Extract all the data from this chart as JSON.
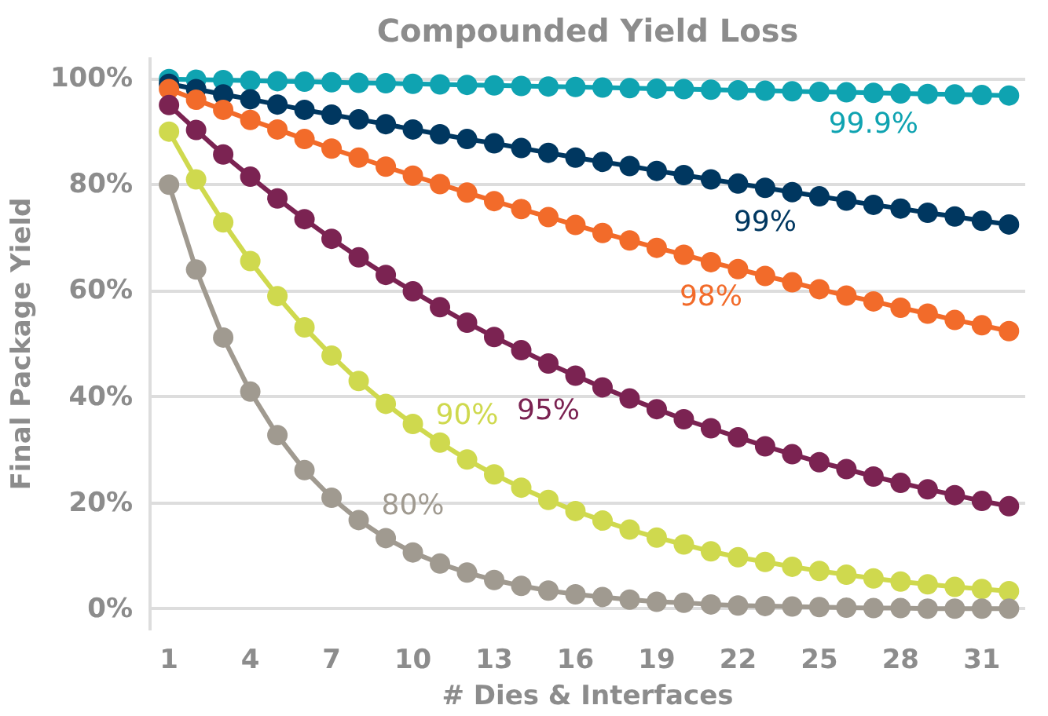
{
  "chart_data": {
    "type": "line",
    "title": "Compounded Yield Loss",
    "xlabel": "# Dies & Interfaces",
    "ylabel": "Final Package Yield",
    "x": [
      1,
      2,
      3,
      4,
      5,
      6,
      7,
      8,
      9,
      10,
      11,
      12,
      13,
      14,
      15,
      16,
      17,
      18,
      19,
      20,
      21,
      22,
      23,
      24,
      25,
      26,
      27,
      28,
      29,
      30,
      31,
      32
    ],
    "xlim": [
      0.3,
      32.6
    ],
    "xticks": [
      1,
      4,
      7,
      10,
      13,
      16,
      19,
      22,
      25,
      28,
      31
    ],
    "ylim": [
      -4,
      104
    ],
    "yticks": [
      {
        "value": 0,
        "label": "0%"
      },
      {
        "value": 20,
        "label": "20%"
      },
      {
        "value": 40,
        "label": "40%"
      },
      {
        "value": 60,
        "label": "60%"
      },
      {
        "value": 80,
        "label": "80%"
      },
      {
        "value": 100,
        "label": "100%"
      }
    ],
    "grid": "y",
    "marker": "circle",
    "line_style": "solid",
    "series": [
      {
        "name": "99.9%",
        "color": "#0fa3b1",
        "values": [
          99.9,
          99.8,
          99.7,
          99.6,
          99.5,
          99.4,
          99.3,
          99.2,
          99.1,
          99.0,
          98.9,
          98.8,
          98.7,
          98.6,
          98.5,
          98.4,
          98.3,
          98.2,
          98.1,
          98.0,
          97.9,
          97.8,
          97.7,
          97.6,
          97.5,
          97.4,
          97.3,
          97.2,
          97.1,
          97.0,
          96.9,
          96.8
        ]
      },
      {
        "name": "99%",
        "color": "#003760",
        "values": [
          99.0,
          98.0,
          97.0,
          96.1,
          95.1,
          94.1,
          93.2,
          92.3,
          91.4,
          90.4,
          89.5,
          88.6,
          87.8,
          86.9,
          86.0,
          85.1,
          84.3,
          83.5,
          82.6,
          81.8,
          81.0,
          80.2,
          79.4,
          78.6,
          77.8,
          77.0,
          76.2,
          75.5,
          74.7,
          74.0,
          73.2,
          72.5
        ]
      },
      {
        "name": "98%",
        "color": "#f26b2a",
        "values": [
          98.0,
          96.0,
          94.1,
          92.2,
          90.4,
          88.6,
          86.8,
          85.1,
          83.4,
          81.7,
          80.1,
          78.5,
          76.9,
          75.4,
          73.9,
          72.4,
          70.9,
          69.5,
          68.1,
          66.8,
          65.4,
          64.1,
          62.8,
          61.6,
          60.3,
          59.1,
          58.0,
          56.8,
          55.7,
          54.5,
          53.5,
          52.4
        ]
      },
      {
        "name": "95%",
        "color": "#7b2352",
        "values": [
          95.0,
          90.3,
          85.7,
          81.5,
          77.4,
          73.5,
          69.8,
          66.3,
          63.0,
          59.9,
          56.9,
          54.0,
          51.3,
          48.8,
          46.3,
          44.0,
          41.8,
          39.7,
          37.7,
          35.8,
          34.1,
          32.4,
          30.7,
          29.2,
          27.7,
          26.4,
          25.0,
          23.8,
          22.6,
          21.5,
          20.4,
          19.4
        ]
      },
      {
        "name": "90%",
        "color": "#cfd94e",
        "values": [
          90.0,
          81.0,
          72.9,
          65.6,
          59.0,
          53.1,
          47.8,
          43.0,
          38.7,
          34.9,
          31.4,
          28.2,
          25.4,
          22.9,
          20.6,
          18.5,
          16.7,
          15.0,
          13.5,
          12.2,
          10.9,
          9.8,
          8.9,
          8.0,
          7.2,
          6.5,
          5.8,
          5.2,
          4.7,
          4.2,
          3.8,
          3.4
        ]
      },
      {
        "name": "80%",
        "color": "#a09a90",
        "values": [
          80.0,
          64.0,
          51.2,
          41.0,
          32.8,
          26.2,
          21.0,
          16.8,
          13.4,
          10.7,
          8.6,
          6.9,
          5.5,
          4.4,
          3.5,
          2.8,
          2.3,
          1.8,
          1.4,
          1.2,
          0.9,
          0.7,
          0.6,
          0.5,
          0.4,
          0.3,
          0.2,
          0.2,
          0.1,
          0.1,
          0.1,
          0.1
        ]
      }
    ]
  }
}
